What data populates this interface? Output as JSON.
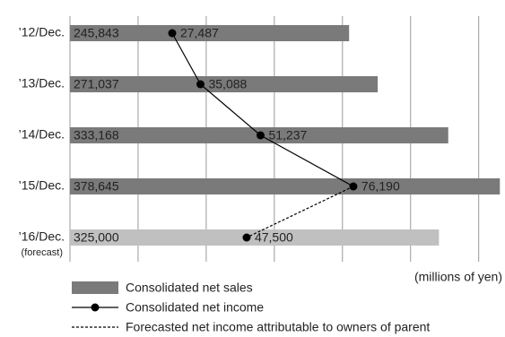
{
  "chart_data": {
    "type": "bar",
    "orientation": "horizontal",
    "categories": [
      "’12/Dec.",
      "’13/Dec.",
      "’14/Dec.",
      "’15/Dec.",
      "’16/Dec."
    ],
    "forecast_label": "(forecast)",
    "unit_label": "(millions of yen)",
    "xlim": [
      0,
      380000
    ],
    "xticks": [
      0,
      60000,
      120000,
      180000,
      240000,
      300000,
      360000
    ],
    "tick_labels": false,
    "grid": true,
    "x2lim": [
      0,
      116000
    ],
    "series": [
      {
        "name": "Consolidated net sales",
        "type": "bar",
        "color": "#7a7a7a",
        "colors": [
          "#7a7a7a",
          "#7a7a7a",
          "#7a7a7a",
          "#7a7a7a",
          "#c0c0c0"
        ],
        "values": [
          245843,
          271037,
          333168,
          378645,
          325000
        ],
        "value_labels": [
          "245,843",
          "271,037",
          "333,168",
          "378,645",
          "325,000"
        ]
      },
      {
        "name": "Consolidated net income",
        "type": "line",
        "axis": "x2",
        "color": "#000000",
        "dashed": false,
        "values": [
          27487,
          35088,
          51237,
          76190,
          null
        ],
        "value_labels": [
          "27,487",
          "35,088",
          "51,237",
          "76,190",
          null
        ]
      },
      {
        "name": "Forecasted net income attributable to owners of parent",
        "type": "line",
        "axis": "x2",
        "color": "#000000",
        "dashed": true,
        "values": [
          null,
          null,
          null,
          76190,
          47500
        ],
        "value_labels": [
          null,
          null,
          null,
          null,
          "47,500"
        ]
      }
    ]
  }
}
